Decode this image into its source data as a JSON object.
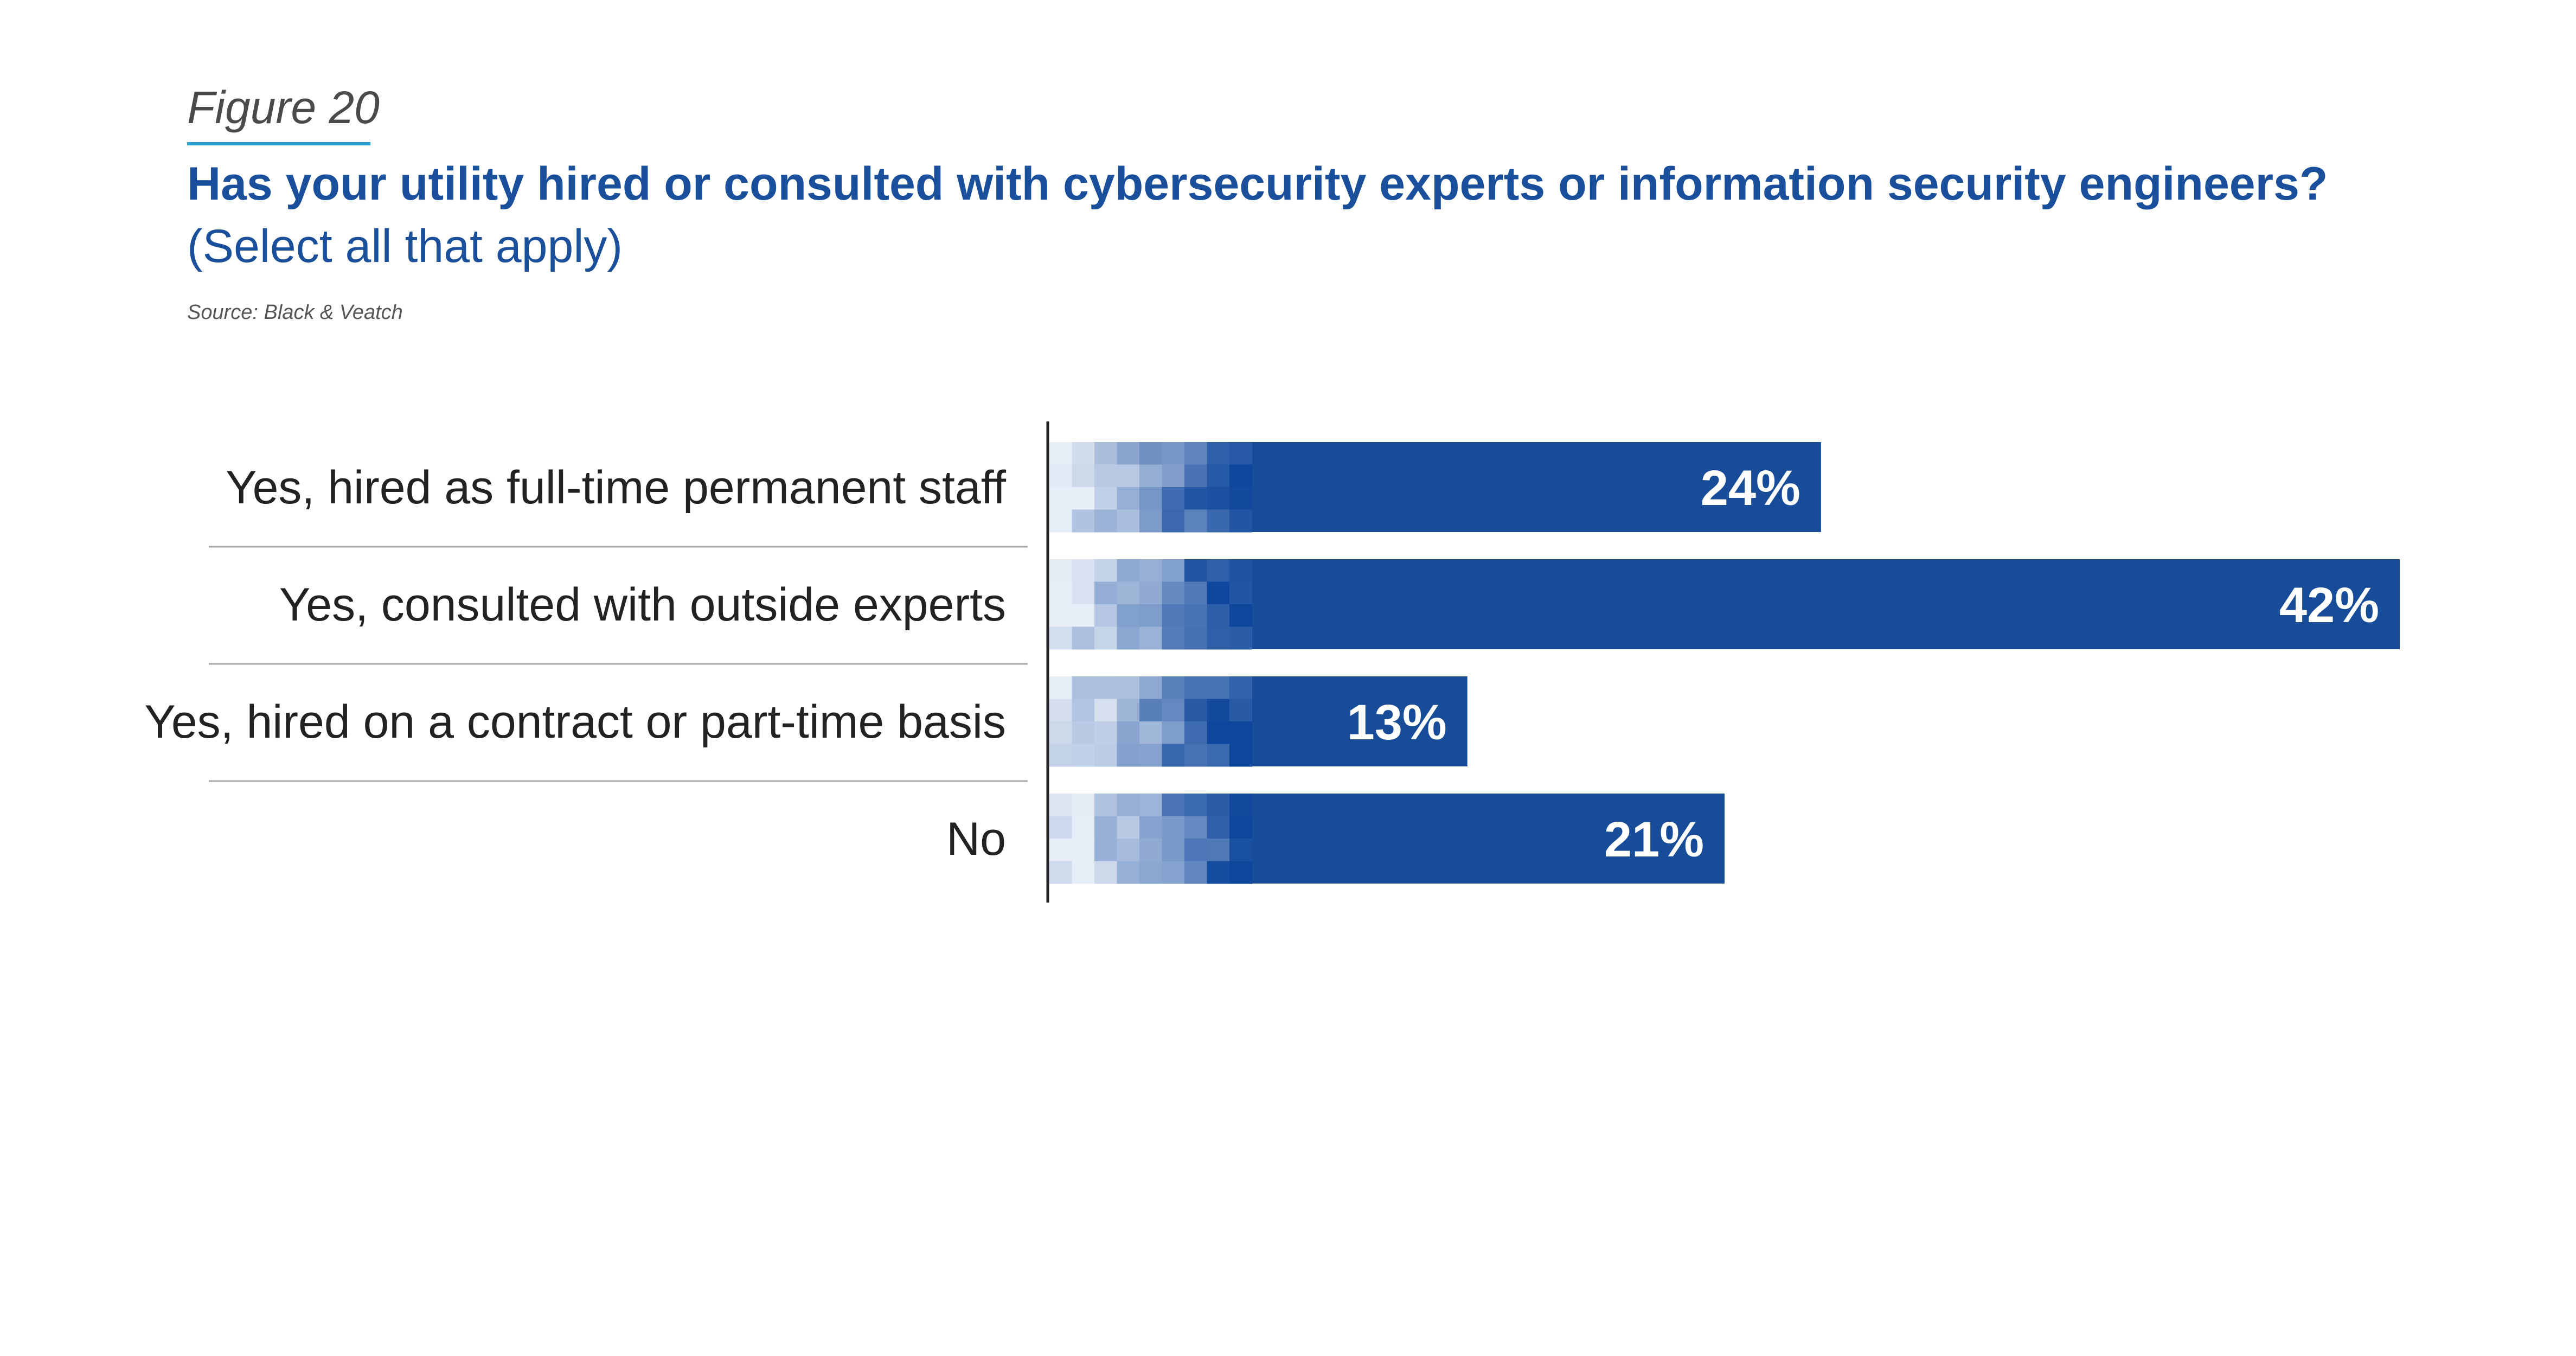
{
  "header": {
    "figure_label": "Figure 20",
    "title": "Has your utility hired or consulted with cybersecurity experts or information security engineers?",
    "subtitle": "(Select all that apply)",
    "source": "Source: Black & Veatch"
  },
  "colors": {
    "bar": "#174c99",
    "title": "#1a4f9c",
    "underline": "#2a9fd6",
    "axis": "#222222",
    "separator": "#aaaaaa"
  },
  "chart_data": {
    "type": "bar",
    "orientation": "horizontal",
    "categories": [
      "Yes, hired as full-time permanent staff",
      "Yes, consulted with outside experts",
      "Yes, hired on a contract or part-time basis",
      "No"
    ],
    "values": [
      24,
      42,
      13,
      21
    ],
    "value_labels": [
      "24%",
      "42%",
      "13%",
      "21%"
    ],
    "unit": "%",
    "xlim": [
      0,
      42
    ],
    "grid": false,
    "legend": "none"
  }
}
